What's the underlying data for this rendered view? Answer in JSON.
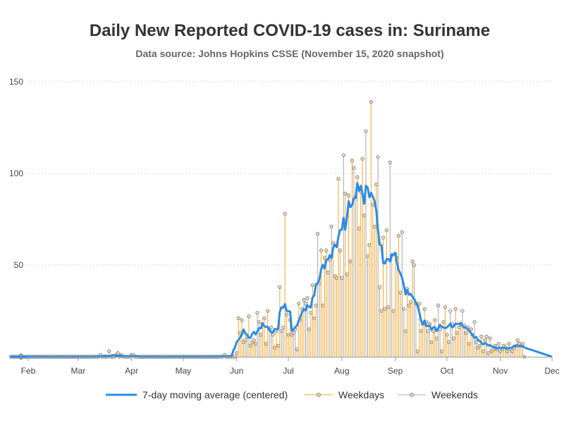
{
  "header": {
    "title": "Daily New Reported COVID-19 cases in: Suriname",
    "subtitle": "Data source: Johns Hopkins CSSE (November 15, 2020 snapshot)"
  },
  "legend": {
    "avg_label": "7-day moving average (centered)",
    "weekday_label": "Weekdays",
    "weekend_label": "Weekends"
  },
  "chart_data": {
    "type": "bar",
    "title": "Daily New Reported COVID-19 cases in: Suriname",
    "subtitle": "Data source: Johns Hopkins CSSE (November 15, 2020 snapshot)",
    "xlabel": "",
    "ylabel": "",
    "x_range": [
      "2020-02-01",
      "2020-12-01"
    ],
    "ylim": [
      0,
      150
    ],
    "y_ticks": [
      0,
      50,
      100,
      150
    ],
    "x_ticks": [
      {
        "date": "2020-02-01",
        "label": "Feb"
      },
      {
        "date": "2020-03-01",
        "label": "Mar"
      },
      {
        "date": "2020-04-01",
        "label": "Apr"
      },
      {
        "date": "2020-05-01",
        "label": "May"
      },
      {
        "date": "2020-06-01",
        "label": "Jun"
      },
      {
        "date": "2020-07-01",
        "label": "Jul"
      },
      {
        "date": "2020-08-01",
        "label": "Aug"
      },
      {
        "date": "2020-09-01",
        "label": "Sep"
      },
      {
        "date": "2020-10-01",
        "label": "Oct"
      },
      {
        "date": "2020-11-01",
        "label": "Nov"
      },
      {
        "date": "2020-12-01",
        "label": "Dec"
      }
    ],
    "grid": "horizontal dotted",
    "legend_position": "bottom",
    "data_start_date": "2020-01-22",
    "data_end_date": "2020-11-15",
    "nonzero_daily_cases": {
      "2020-03-14": 1,
      "2020-03-19": 3,
      "2020-03-23": 1,
      "2020-03-24": 2,
      "2020-03-26": 1,
      "2020-04-01": 1,
      "2020-04-02": 1,
      "2020-05-25": 1,
      "2020-06-01": 2,
      "2020-06-02": 21,
      "2020-06-03": 13,
      "2020-06-04": 20,
      "2020-06-05": 8,
      "2020-06-06": 9,
      "2020-06-07": 11,
      "2020-06-08": 22,
      "2020-06-09": 6,
      "2020-06-10": 8,
      "2020-06-11": 9,
      "2020-06-12": 7,
      "2020-06-13": 24,
      "2020-06-14": 19,
      "2020-06-15": 12,
      "2020-06-16": 18,
      "2020-06-17": 21,
      "2020-06-18": 7,
      "2020-06-19": 25,
      "2020-06-20": 15,
      "2020-06-21": 16,
      "2020-06-22": 12,
      "2020-06-23": 5,
      "2020-06-24": 14,
      "2020-06-25": 6,
      "2020-06-26": 38,
      "2020-06-27": 14,
      "2020-06-28": 16,
      "2020-06-29": 78,
      "2020-06-30": 23,
      "2020-07-01": 12,
      "2020-07-02": 20,
      "2020-07-03": 12,
      "2020-07-04": 13,
      "2020-07-05": 15,
      "2020-07-06": 4,
      "2020-07-07": 29,
      "2020-07-08": 20,
      "2020-07-09": 26,
      "2020-07-10": 31,
      "2020-07-11": 29,
      "2020-07-12": 32,
      "2020-07-13": 15,
      "2020-07-14": 24,
      "2020-07-15": 39,
      "2020-07-16": 21,
      "2020-07-17": 28,
      "2020-07-18": 67,
      "2020-07-19": 40,
      "2020-07-20": 58,
      "2020-07-21": 28,
      "2020-07-22": 54,
      "2020-07-23": 58,
      "2020-07-24": 46,
      "2020-07-25": 53,
      "2020-07-26": 71,
      "2020-07-27": 62,
      "2020-07-28": 44,
      "2020-07-29": 43,
      "2020-07-30": 97,
      "2020-07-31": 58,
      "2020-08-01": 43,
      "2020-08-02": 110,
      "2020-08-03": 89,
      "2020-08-04": 45,
      "2020-08-05": 88,
      "2020-08-06": 52,
      "2020-08-07": 107,
      "2020-08-08": 103,
      "2020-08-09": 87,
      "2020-08-10": 98,
      "2020-08-11": 70,
      "2020-08-12": 90,
      "2020-08-13": 108,
      "2020-08-14": 77,
      "2020-08-15": 123,
      "2020-08-16": 55,
      "2020-08-17": 61,
      "2020-08-18": 139,
      "2020-08-19": 83,
      "2020-08-20": 71,
      "2020-08-21": 94,
      "2020-08-22": 109,
      "2020-08-23": 38,
      "2020-08-24": 25,
      "2020-08-25": 65,
      "2020-08-26": 26,
      "2020-08-27": 69,
      "2020-08-28": 27,
      "2020-08-29": 106,
      "2020-08-30": 55,
      "2020-08-31": 25,
      "2020-09-01": 56,
      "2020-09-02": 54,
      "2020-09-03": 66,
      "2020-09-04": 35,
      "2020-09-05": 68,
      "2020-09-06": 26,
      "2020-09-07": 14,
      "2020-09-08": 37,
      "2020-09-09": 28,
      "2020-09-10": 30,
      "2020-09-11": 52,
      "2020-09-12": 50,
      "2020-09-13": 29,
      "2020-09-14": 3,
      "2020-09-15": 29,
      "2020-09-16": 14,
      "2020-09-17": 18,
      "2020-09-18": 26,
      "2020-09-19": 19,
      "2020-09-20": 14,
      "2020-09-21": 18,
      "2020-09-22": 8,
      "2020-09-23": 14,
      "2020-09-24": 20,
      "2020-09-25": 10,
      "2020-09-26": 28,
      "2020-09-27": 15,
      "2020-09-28": 3,
      "2020-09-29": 19,
      "2020-09-30": 27,
      "2020-10-01": 12,
      "2020-10-02": 8,
      "2020-10-03": 25,
      "2020-10-04": 18,
      "2020-10-05": 10,
      "2020-10-06": 26,
      "2020-10-07": 13,
      "2020-10-08": 16,
      "2020-10-09": 18,
      "2020-10-10": 25,
      "2020-10-11": 17,
      "2020-10-12": 13,
      "2020-10-13": 16,
      "2020-10-14": 7,
      "2020-10-15": 15,
      "2020-10-16": 12,
      "2020-10-17": 19,
      "2020-10-18": 8,
      "2020-10-19": 5,
      "2020-10-20": 6,
      "2020-10-21": 11,
      "2020-10-22": 3,
      "2020-10-23": 9,
      "2020-10-24": 11,
      "2020-10-25": 2,
      "2020-10-26": 10,
      "2020-10-27": 3,
      "2020-10-28": 4,
      "2020-10-29": 6,
      "2020-10-30": 4,
      "2020-10-31": 7,
      "2020-11-01": 3,
      "2020-11-02": 4,
      "2020-11-03": 6,
      "2020-11-04": 5,
      "2020-11-05": 3,
      "2020-11-06": 7,
      "2020-11-07": 4,
      "2020-11-08": 3,
      "2020-11-09": 5,
      "2020-11-10": 6,
      "2020-11-11": 9,
      "2020-11-12": 7,
      "2020-11-13": 6,
      "2020-11-14": 7,
      "2020-11-15": 0
    },
    "series": [
      {
        "name": "7-day moving average (centered)",
        "type": "line",
        "color": "#2b8ce6"
      },
      {
        "name": "Weekdays",
        "type": "needle",
        "color": "#f0a830",
        "marker_fill": "#e8d2a6"
      },
      {
        "name": "Weekends",
        "type": "needle",
        "color": "#a8a8a8",
        "marker_fill": "#d8d8d8"
      }
    ]
  },
  "colors": {
    "avg_line": "#2b8ce6",
    "weekday": "#f0a830",
    "weekend": "#a8a8a8",
    "grid": "#bbbbbb",
    "axis": "#999999",
    "title": "#333333",
    "subtitle": "#666666"
  }
}
